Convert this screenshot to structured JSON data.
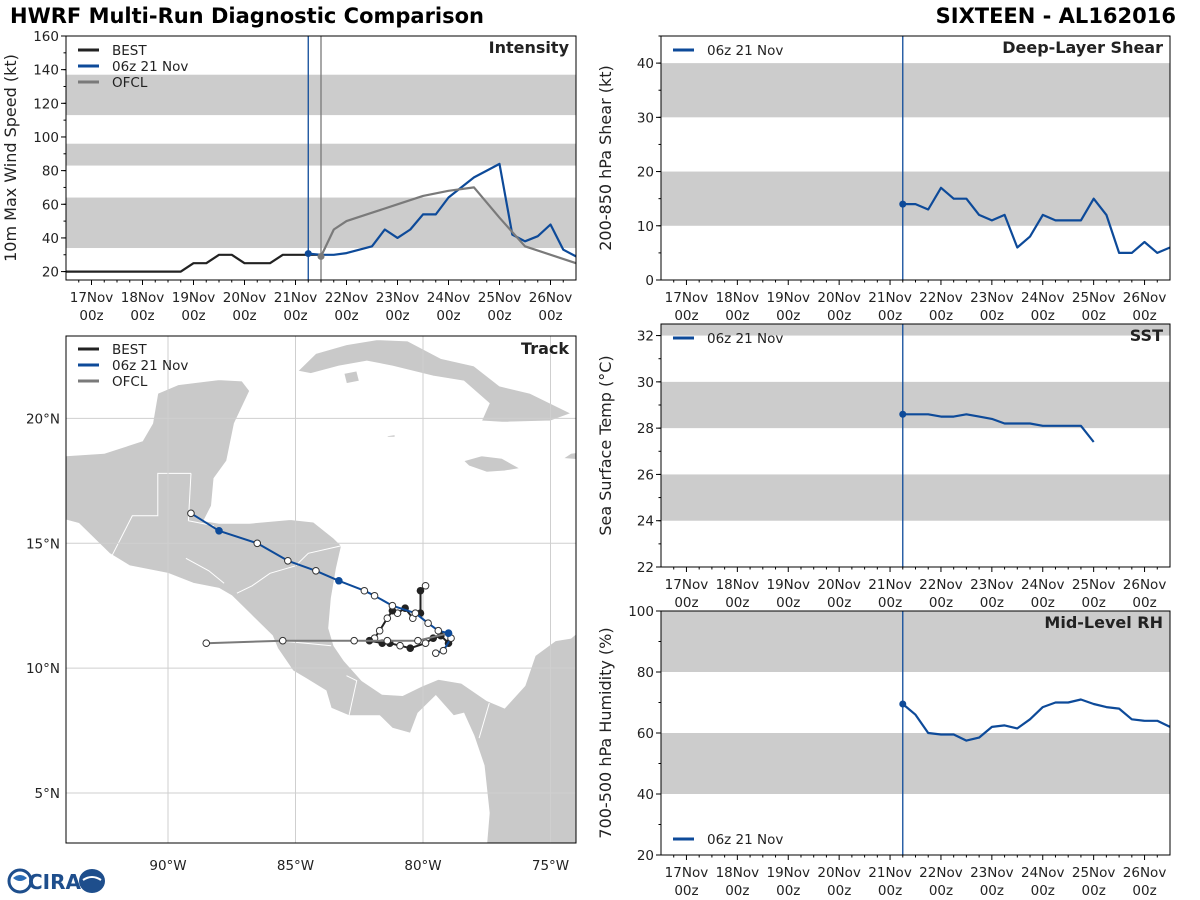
{
  "header": {
    "title": "HWRF Multi-Run Diagnostic Comparison",
    "storm": "SIXTEEN - AL162016"
  },
  "colors": {
    "best": "#222222",
    "run": "#0d4a99",
    "ofcl": "#7a7a7a",
    "band": "#cccccc",
    "land": "#c9c9c9",
    "grid": "#cfcfcf"
  },
  "logo": {
    "text": "CIRA"
  },
  "chart_data": [
    {
      "id": "intensity",
      "type": "line",
      "title": "Intensity",
      "ylabel": "10m Max Wind Speed (kt)",
      "ylim": [
        15,
        160
      ],
      "yticks": [
        20,
        40,
        60,
        80,
        100,
        120,
        140,
        160
      ],
      "xlim": [
        -0.5,
        9.5
      ],
      "xticks": [
        "17Nov\n00z",
        "18Nov\n00z",
        "19Nov\n00z",
        "20Nov\n00z",
        "21Nov\n00z",
        "22Nov\n00z",
        "23Nov\n00z",
        "24Nov\n00z",
        "25Nov\n00z",
        "26Nov\n00z"
      ],
      "bands": [
        [
          34,
          64
        ],
        [
          83,
          96
        ],
        [
          113,
          137
        ]
      ],
      "legend": [
        "BEST",
        "06z 21 Nov",
        "OFCL"
      ],
      "legend_position": "top-left",
      "vlines": [
        {
          "x": 4.25,
          "series": "06z 21 Nov"
        },
        {
          "x": 4.5,
          "series": "OFCL"
        }
      ],
      "series": [
        {
          "name": "BEST",
          "x": [
            -0.5,
            0,
            0.25,
            0.5,
            0.75,
            1,
            1.25,
            1.5,
            1.75,
            2,
            2.25,
            2.5,
            2.75,
            3,
            3.25,
            3.5,
            3.75,
            4,
            4.25,
            4.5
          ],
          "y": [
            20,
            20,
            20,
            20,
            20,
            20,
            20,
            20,
            20,
            25,
            25,
            30,
            30,
            25,
            25,
            25,
            30,
            30,
            30,
            30
          ]
        },
        {
          "name": "06z 21 Nov",
          "x": [
            4.25,
            4.5,
            4.75,
            5,
            5.25,
            5.5,
            5.75,
            6,
            6.25,
            6.5,
            6.75,
            7,
            7.25,
            7.5,
            7.75,
            8,
            8.25,
            8.5,
            8.75,
            9,
            9.25,
            9.5
          ],
          "y": [
            30.7,
            30,
            30,
            31,
            33,
            35,
            45,
            40,
            45,
            54,
            54,
            64,
            70,
            76,
            80,
            84,
            42,
            38,
            41,
            48,
            33,
            29
          ],
          "marker_start": true
        },
        {
          "name": "OFCL",
          "x": [
            4.5,
            4.75,
            5,
            5.5,
            6,
            6.5,
            7,
            7.5,
            8,
            8.5,
            9.5
          ],
          "y": [
            29,
            45,
            50,
            55,
            60,
            65,
            68,
            70,
            52,
            35,
            25
          ],
          "marker_start": true
        }
      ]
    },
    {
      "id": "shear",
      "type": "line",
      "title": "Deep-Layer Shear",
      "ylabel": "200-850 hPa Shear (kt)",
      "ylim": [
        0,
        45
      ],
      "yticks": [
        0,
        10,
        20,
        30,
        40
      ],
      "xlim": [
        -0.5,
        9.5
      ],
      "xticks": [
        "17Nov\n00z",
        "18Nov\n00z",
        "19Nov\n00z",
        "20Nov\n00z",
        "21Nov\n00z",
        "22Nov\n00z",
        "23Nov\n00z",
        "24Nov\n00z",
        "25Nov\n00z",
        "26Nov\n00z"
      ],
      "bands": [
        [
          10,
          20
        ],
        [
          30,
          40
        ]
      ],
      "legend": [
        "06z 21 Nov"
      ],
      "legend_position": "top-left",
      "vlines": [
        {
          "x": 4.25,
          "series": "06z 21 Nov"
        }
      ],
      "series": [
        {
          "name": "06z 21 Nov",
          "x": [
            4.25,
            4.5,
            4.75,
            5,
            5.25,
            5.5,
            5.75,
            6,
            6.25,
            6.5,
            6.75,
            7,
            7.25,
            7.5,
            7.75,
            8,
            8.25,
            8.5,
            8.75,
            9,
            9.25,
            9.5
          ],
          "y": [
            14,
            14,
            13,
            17,
            15,
            15,
            12,
            11,
            12,
            6,
            8,
            12,
            11,
            11,
            11,
            15,
            12,
            5,
            5,
            7,
            5,
            6
          ],
          "marker_start": true
        }
      ]
    },
    {
      "id": "sst",
      "type": "line",
      "title": "SST",
      "ylabel": "Sea Surface Temp (°C)",
      "ylim": [
        22,
        32.5
      ],
      "yticks": [
        22,
        24,
        26,
        28,
        30,
        32
      ],
      "xlim": [
        -0.5,
        9.5
      ],
      "xticks": [
        "17Nov\n00z",
        "18Nov\n00z",
        "19Nov\n00z",
        "20Nov\n00z",
        "21Nov\n00z",
        "22Nov\n00z",
        "23Nov\n00z",
        "24Nov\n00z",
        "25Nov\n00z",
        "26Nov\n00z"
      ],
      "bands": [
        [
          24,
          26
        ],
        [
          28,
          30
        ],
        [
          32,
          32.5
        ]
      ],
      "legend": [
        "06z 21 Nov"
      ],
      "legend_position": "top-left",
      "vlines": [
        {
          "x": 4.25,
          "series": "06z 21 Nov"
        }
      ],
      "series": [
        {
          "name": "06z 21 Nov",
          "x": [
            4.25,
            4.5,
            4.75,
            5,
            5.25,
            5.5,
            5.75,
            6,
            6.25,
            6.5,
            6.75,
            7,
            7.25,
            7.5,
            7.75,
            8
          ],
          "y": [
            28.6,
            28.6,
            28.6,
            28.5,
            28.5,
            28.6,
            28.5,
            28.4,
            28.2,
            28.2,
            28.2,
            28.1,
            28.1,
            28.1,
            28.1,
            27.4
          ],
          "marker_start": true
        }
      ]
    },
    {
      "id": "rh",
      "type": "line",
      "title": "Mid-Level RH",
      "ylabel": "700-500 hPa Humidity (%)",
      "ylim": [
        20,
        100
      ],
      "yticks": [
        20,
        40,
        60,
        80,
        100
      ],
      "xlim": [
        -0.5,
        9.5
      ],
      "xticks": [
        "17Nov\n00z",
        "18Nov\n00z",
        "19Nov\n00z",
        "20Nov\n00z",
        "21Nov\n00z",
        "22Nov\n00z",
        "23Nov\n00z",
        "24Nov\n00z",
        "25Nov\n00z",
        "26Nov\n00z"
      ],
      "bands": [
        [
          40,
          60
        ],
        [
          80,
          100
        ]
      ],
      "legend": [
        "06z 21 Nov"
      ],
      "legend_position": "bottom-left",
      "vlines": [
        {
          "x": 4.25,
          "series": "06z 21 Nov"
        }
      ],
      "series": [
        {
          "name": "06z 21 Nov",
          "x": [
            4.25,
            4.5,
            4.75,
            5,
            5.25,
            5.5,
            5.75,
            6,
            6.25,
            6.5,
            6.75,
            7,
            7.25,
            7.5,
            7.75,
            8,
            8.25,
            8.5,
            8.75,
            9,
            9.25,
            9.5
          ],
          "y": [
            69.5,
            66,
            60,
            59.5,
            59.5,
            57.5,
            58.5,
            62,
            62.5,
            61.5,
            64.5,
            68.5,
            70,
            70,
            71,
            69.5,
            68.5,
            68,
            64.5,
            64,
            64,
            62
          ],
          "marker_start": true
        }
      ]
    },
    {
      "id": "track",
      "type": "line",
      "title": "Track",
      "xlim": [
        -94,
        -74
      ],
      "ylim": [
        3,
        23.3
      ],
      "xticks": [
        -90,
        -85,
        -80,
        -75
      ],
      "xtick_labels": [
        "90°W",
        "85°W",
        "80°W",
        "75°W"
      ],
      "yticks": [
        5,
        10,
        15,
        20
      ],
      "ytick_labels": [
        "5°N",
        "10°N",
        "15°N",
        "20°N"
      ],
      "legend": [
        "BEST",
        "06z 21 Nov",
        "OFCL"
      ],
      "legend_position": "top-left",
      "series": [
        {
          "name": "BEST",
          "x": [
            -79.9,
            -80.1,
            -80.1,
            -80.4,
            -80.7,
            -81.0,
            -81.2,
            -81.4,
            -81.7,
            -81.9,
            -82.1,
            -81.6,
            -81.3,
            -80.9,
            -80.5,
            -79.9,
            -79.6,
            -79.3,
            -79.0
          ],
          "y": [
            13.3,
            13.1,
            12.2,
            12.0,
            12.4,
            12.2,
            12.3,
            12.0,
            11.5,
            11.2,
            11.1,
            11.0,
            11.0,
            10.9,
            10.8,
            11.0,
            11.2,
            11.3,
            11.0
          ],
          "filled": [
            0,
            1,
            1,
            0,
            1,
            0,
            1,
            0,
            0,
            0,
            1,
            1,
            1,
            0,
            1,
            0,
            1,
            1,
            1
          ]
        },
        {
          "name": "06z 21 Nov",
          "x": [
            -89.1,
            -88.0,
            -86.5,
            -85.3,
            -84.2,
            -83.3,
            -82.3,
            -81.9,
            -81.2,
            -80.3,
            -79.8,
            -79.4,
            -79.0,
            -78.9,
            -79.2,
            -79.5
          ],
          "y": [
            16.2,
            15.5,
            15.0,
            14.3,
            13.9,
            13.5,
            13.1,
            12.9,
            12.5,
            12.2,
            11.8,
            11.5,
            11.4,
            11.2,
            10.7,
            10.6
          ],
          "filled": [
            0,
            1,
            0,
            0,
            0,
            1,
            0,
            0,
            0,
            0,
            0,
            0,
            1,
            0,
            0,
            0
          ]
        },
        {
          "name": "OFCL",
          "x": [
            -79.0,
            -80.2,
            -81.4,
            -82.7,
            -85.5,
            -88.5
          ],
          "y": [
            11.4,
            11.1,
            11.1,
            11.1,
            11.1,
            11.0
          ],
          "filled": [
            1,
            0,
            0,
            0,
            0,
            0
          ]
        }
      ]
    }
  ]
}
